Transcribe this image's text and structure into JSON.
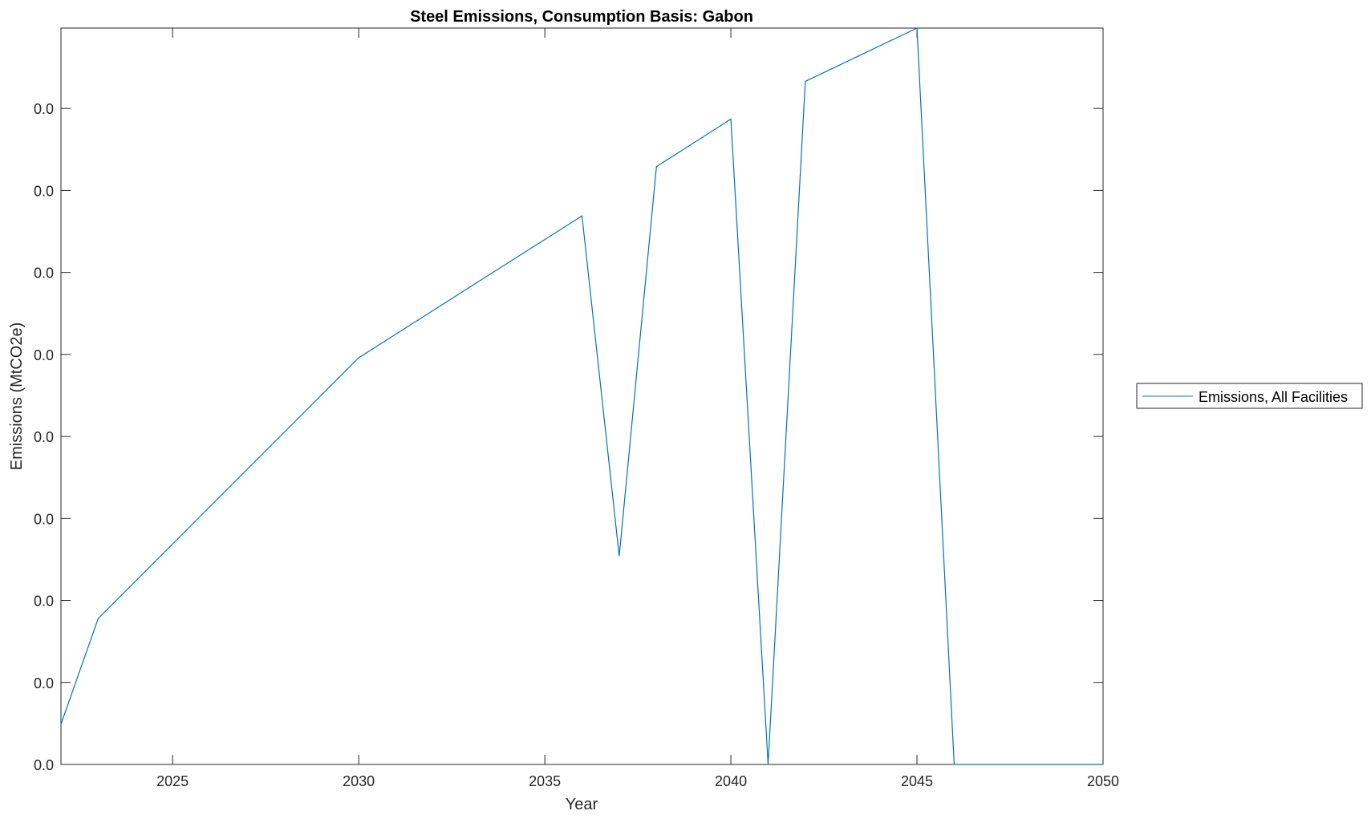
{
  "chart_data": {
    "type": "line",
    "title": "Steel Emissions, Consumption Basis: Gabon",
    "xlabel": "Year",
    "ylabel": "Emissions (MtCO2e)",
    "xlim": [
      2022,
      2050
    ],
    "ylim": [
      0,
      0.00898
    ],
    "xticks": [
      2025,
      2030,
      2035,
      2040,
      2045,
      2050
    ],
    "yticks": [
      0,
      0.001,
      0.002,
      0.003,
      0.004,
      0.005,
      0.006,
      0.007,
      0.008
    ],
    "ytick_labels": [
      "0.0",
      "0.0",
      "0.0",
      "0.0",
      "0.0",
      "0.0",
      "0.0",
      "0.0",
      "0.0"
    ],
    "grid": false,
    "legend_position": "outside-right",
    "series": [
      {
        "name": "Emissions, All Facilities",
        "color": "#0072BD",
        "x": [
          2022,
          2023,
          2030,
          2036,
          2037,
          2038,
          2040,
          2041,
          2042,
          2045,
          2046,
          2050
        ],
        "y": [
          0.00049,
          0.00178,
          0.00496,
          0.00669,
          0.00254,
          0.00729,
          0.00787,
          0,
          0.00833,
          0.00898,
          0,
          0
        ]
      }
    ]
  }
}
